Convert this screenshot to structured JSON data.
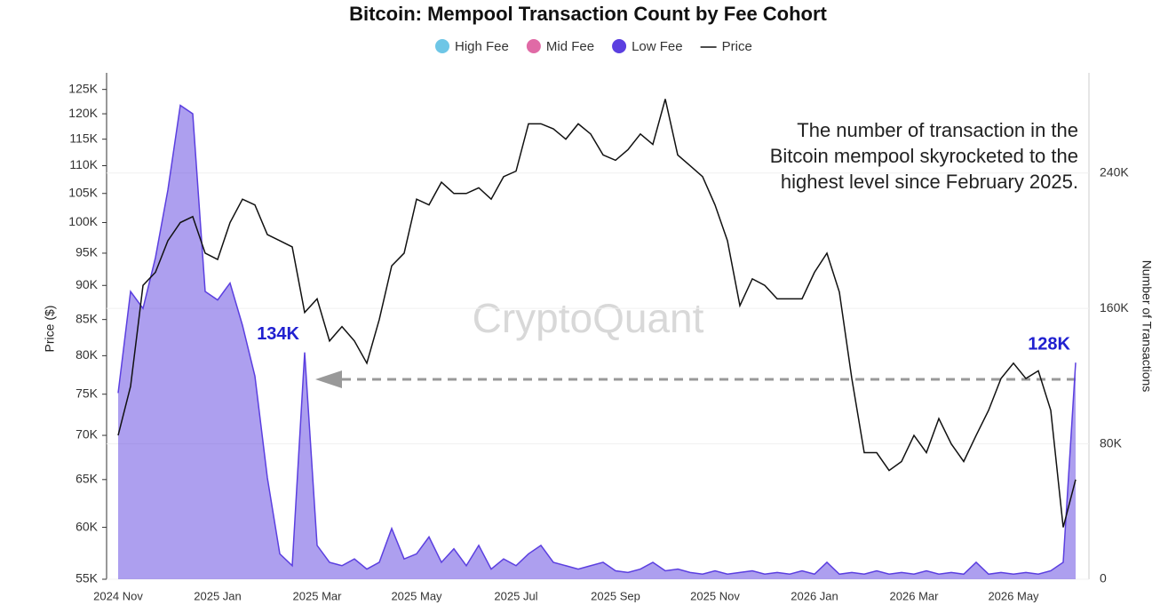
{
  "chart_data": {
    "type": "area-line",
    "title": "Bitcoin: Mempool Transaction Count by Fee Cohort",
    "ylabel": "Price ($)",
    "y2label": "Number of Transactions",
    "annotation": [
      "The number of transaction in the",
      "Bitcoin mempool skyrocketed to the",
      "highest level since February 2025."
    ],
    "watermark": "CryptoQuant",
    "categories": [
      "2024 Nov",
      null,
      null,
      null,
      null,
      null,
      null,
      null,
      "2025 Jan",
      null,
      null,
      null,
      null,
      null,
      null,
      null,
      "2025 Mar",
      null,
      null,
      null,
      null,
      null,
      null,
      null,
      "2025 May",
      null,
      null,
      null,
      null,
      null,
      null,
      null,
      "2025 Jul",
      null,
      null,
      null,
      null,
      null,
      null,
      null,
      "2025 Sep",
      null,
      null,
      null,
      null,
      null,
      null,
      null,
      "2025 Nov",
      null,
      null,
      null,
      null,
      null,
      null,
      null,
      "2026 Jan",
      null,
      null,
      null,
      null,
      null,
      null,
      null,
      "2026 Mar",
      null,
      null,
      null,
      null,
      null,
      null,
      null,
      "2026 May",
      null,
      null,
      null,
      null,
      null
    ],
    "log_y": true,
    "ylim": [
      55000,
      127000
    ],
    "yticks": [
      {
        "value": 55000,
        "label": "55K"
      },
      {
        "value": 60000,
        "label": "60K"
      },
      {
        "value": 65000,
        "label": "65K"
      },
      {
        "value": 70000,
        "label": "70K"
      },
      {
        "value": 75000,
        "label": "75K"
      },
      {
        "value": 80000,
        "label": "80K"
      },
      {
        "value": 85000,
        "label": "85K"
      },
      {
        "value": 90000,
        "label": "90K"
      },
      {
        "value": 95000,
        "label": "95K"
      },
      {
        "value": 100000,
        "label": "100K"
      },
      {
        "value": 105000,
        "label": "105K"
      },
      {
        "value": 110000,
        "label": "110K"
      },
      {
        "value": 115000,
        "label": "115K"
      },
      {
        "value": 120000,
        "label": "120K"
      },
      {
        "value": 125000,
        "label": "125K"
      }
    ],
    "y2lim": [
      0,
      295000
    ],
    "y2ticks": [
      0,
      {
        "value": 80000,
        "label": "80K"
      },
      {
        "value": 160000,
        "label": "160K"
      },
      {
        "value": 240000,
        "label": "240K"
      }
    ],
    "grid": "y2",
    "legend": "top",
    "series": [
      {
        "name": "High Fee",
        "color": "#6ec6e6",
        "kind": "area",
        "axis": "y2"
      },
      {
        "name": "Mid Fee",
        "color": "#e06aa6",
        "kind": "area",
        "axis": "y2"
      },
      {
        "name": "Low Fee",
        "color": "#5b3fe0",
        "kind": "area",
        "axis": "y2",
        "values": [
          110000,
          170000,
          160000,
          190000,
          230000,
          280000,
          275000,
          170000,
          165000,
          175000,
          150000,
          120000,
          60000,
          15000,
          8000,
          134000,
          20000,
          10000,
          8000,
          12000,
          6000,
          10000,
          30000,
          12000,
          15000,
          25000,
          10000,
          18000,
          8000,
          20000,
          6000,
          12000,
          8000,
          15000,
          20000,
          10000,
          8000,
          6000,
          8000,
          10000,
          5000,
          4000,
          6000,
          10000,
          5000,
          6000,
          4000,
          3000,
          5000,
          3000,
          4000,
          5000,
          3000,
          4000,
          3000,
          5000,
          3000,
          10000,
          3000,
          4000,
          3000,
          5000,
          3000,
          4000,
          3000,
          5000,
          3000,
          4000,
          3000,
          10000,
          3000,
          4000,
          3000,
          4000,
          3000,
          5000,
          10000,
          128000
        ],
        "value_labels": [
          null,
          null,
          null,
          null,
          null,
          null,
          null,
          null,
          null,
          null,
          null,
          null,
          null,
          null,
          null,
          "134K",
          null,
          null,
          null,
          null,
          null,
          null,
          null,
          null,
          null,
          null,
          null,
          null,
          null,
          null,
          null,
          null,
          null,
          null,
          null,
          null,
          null,
          null,
          null,
          null,
          null,
          null,
          null,
          null,
          null,
          null,
          null,
          null,
          null,
          null,
          null,
          null,
          null,
          null,
          null,
          null,
          null,
          null,
          null,
          null,
          null,
          null,
          null,
          null,
          null,
          null,
          null,
          null,
          null,
          null,
          null,
          null,
          null,
          null,
          null,
          null,
          null,
          "128K"
        ]
      },
      {
        "name": "Price",
        "color": "#111111",
        "kind": "line",
        "axis": "y",
        "values": [
          70000,
          76000,
          90000,
          92000,
          97000,
          100000,
          101000,
          95000,
          94000,
          100000,
          104000,
          103000,
          98000,
          97000,
          96000,
          86000,
          88000,
          82000,
          84000,
          82000,
          79000,
          85000,
          93000,
          95000,
          104000,
          103000,
          107000,
          105000,
          105000,
          106000,
          104000,
          108000,
          109000,
          118000,
          118000,
          117000,
          115000,
          118000,
          116000,
          112000,
          111000,
          113000,
          116000,
          114000,
          123000,
          112000,
          110000,
          108000,
          103000,
          97000,
          87000,
          91000,
          90000,
          88000,
          88000,
          88000,
          92000,
          95000,
          89000,
          77000,
          68000,
          68000,
          66000,
          67000,
          70000,
          68000,
          72000,
          69000,
          67000,
          70000,
          73000,
          77000,
          79000,
          77000,
          78000,
          73000,
          60000,
          65000
        ]
      }
    ]
  }
}
